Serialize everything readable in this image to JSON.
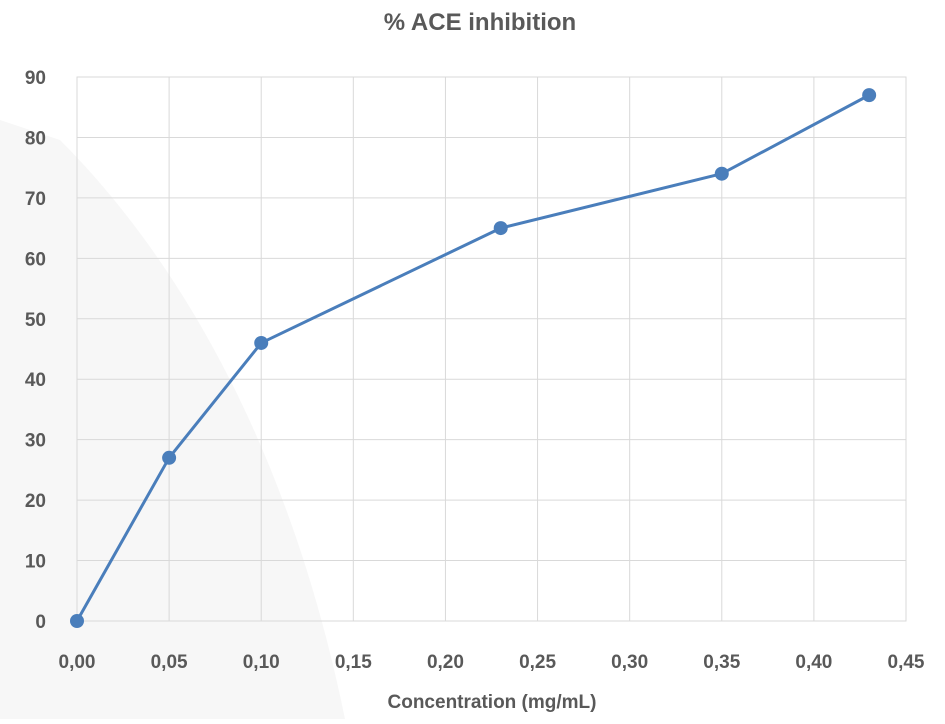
{
  "chart_data": {
    "type": "line",
    "title": "% ACE inhibition",
    "xlabel": "Concentration (mg/mL)",
    "ylabel": "",
    "xlim": [
      0,
      0.45
    ],
    "ylim": [
      0,
      90
    ],
    "x_ticks": [
      "0,00",
      "0,05",
      "0,10",
      "0,15",
      "0,20",
      "0,25",
      "0,30",
      "0,35",
      "0,40",
      "0,45"
    ],
    "y_ticks": [
      "0",
      "10",
      "20",
      "30",
      "40",
      "50",
      "60",
      "70",
      "80",
      "90"
    ],
    "grid": true,
    "legend": "none",
    "series": [
      {
        "x": [
          0,
          0.05,
          0.1,
          0.23,
          0.35,
          0.43
        ],
        "y": [
          0,
          27,
          46,
          65,
          74,
          87
        ],
        "color": "#4a7ebb"
      }
    ],
    "colors": {
      "line": "#4a7ebb",
      "grid": "#d9d9d9",
      "text": "#595959"
    }
  }
}
